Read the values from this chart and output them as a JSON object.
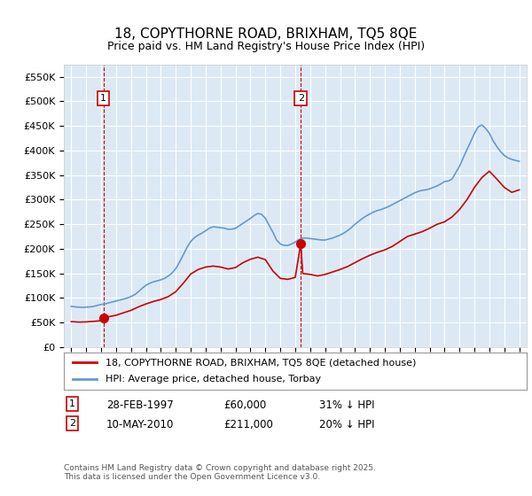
{
  "title": "18, COPYTHORNE ROAD, BRIXHAM, TQ5 8QE",
  "subtitle": "Price paid vs. HM Land Registry's House Price Index (HPI)",
  "ylabel": "",
  "ylim": [
    0,
    575000
  ],
  "yticks": [
    0,
    50000,
    100000,
    150000,
    200000,
    250000,
    300000,
    350000,
    400000,
    450000,
    500000,
    550000
  ],
  "ytick_labels": [
    "£0",
    "£50K",
    "£100K",
    "£150K",
    "£200K",
    "£250K",
    "£300K",
    "£350K",
    "£400K",
    "£450K",
    "£500K",
    "£550K"
  ],
  "bg_color": "#dce9f5",
  "plot_bg": "#dce9f5",
  "legend_label_red": "18, COPYTHORNE ROAD, BRIXHAM, TQ5 8QE (detached house)",
  "legend_label_blue": "HPI: Average price, detached house, Torbay",
  "sale1_date_label": "28-FEB-1997",
  "sale1_price_label": "£60,000",
  "sale1_pct_label": "31% ↓ HPI",
  "sale2_date_label": "10-MAY-2010",
  "sale2_price_label": "£211,000",
  "sale2_pct_label": "20% ↓ HPI",
  "footer": "Contains HM Land Registry data © Crown copyright and database right 2025.\nThis data is licensed under the Open Government Licence v3.0.",
  "red_color": "#cc0000",
  "blue_color": "#6699cc",
  "vline_color": "#cc0000",
  "hpi_data": {
    "years": [
      1995.0,
      1995.25,
      1995.5,
      1995.75,
      1996.0,
      1996.25,
      1996.5,
      1996.75,
      1997.0,
      1997.25,
      1997.5,
      1997.75,
      1998.0,
      1998.25,
      1998.5,
      1998.75,
      1999.0,
      1999.25,
      1999.5,
      1999.75,
      2000.0,
      2000.25,
      2000.5,
      2000.75,
      2001.0,
      2001.25,
      2001.5,
      2001.75,
      2002.0,
      2002.25,
      2002.5,
      2002.75,
      2003.0,
      2003.25,
      2003.5,
      2003.75,
      2004.0,
      2004.25,
      2004.5,
      2004.75,
      2005.0,
      2005.25,
      2005.5,
      2005.75,
      2006.0,
      2006.25,
      2006.5,
      2006.75,
      2007.0,
      2007.25,
      2007.5,
      2007.75,
      2008.0,
      2008.25,
      2008.5,
      2008.75,
      2009.0,
      2009.25,
      2009.5,
      2009.75,
      2010.0,
      2010.25,
      2010.5,
      2010.75,
      2011.0,
      2011.25,
      2011.5,
      2011.75,
      2012.0,
      2012.25,
      2012.5,
      2012.75,
      2013.0,
      2013.25,
      2013.5,
      2013.75,
      2014.0,
      2014.25,
      2014.5,
      2014.75,
      2015.0,
      2015.25,
      2015.5,
      2015.75,
      2016.0,
      2016.25,
      2016.5,
      2016.75,
      2017.0,
      2017.25,
      2017.5,
      2017.75,
      2018.0,
      2018.25,
      2018.5,
      2018.75,
      2019.0,
      2019.25,
      2019.5,
      2019.75,
      2020.0,
      2020.25,
      2020.5,
      2020.75,
      2021.0,
      2021.25,
      2021.5,
      2021.75,
      2022.0,
      2022.25,
      2022.5,
      2022.75,
      2023.0,
      2023.25,
      2023.5,
      2023.75,
      2024.0,
      2024.25,
      2024.5,
      2024.75,
      2025.0
    ],
    "values": [
      83000,
      82000,
      81500,
      81000,
      81500,
      82000,
      83000,
      85000,
      87000,
      88000,
      90000,
      92000,
      94000,
      96000,
      98000,
      100000,
      103000,
      107000,
      113000,
      120000,
      126000,
      130000,
      133000,
      135000,
      137000,
      140000,
      145000,
      151000,
      160000,
      173000,
      188000,
      203000,
      215000,
      223000,
      228000,
      232000,
      237000,
      242000,
      245000,
      244000,
      243000,
      242000,
      240000,
      240000,
      242000,
      247000,
      252000,
      257000,
      262000,
      268000,
      272000,
      270000,
      262000,
      248000,
      234000,
      218000,
      210000,
      207000,
      207000,
      210000,
      214000,
      219000,
      222000,
      222000,
      221000,
      220000,
      219000,
      218000,
      218000,
      220000,
      222000,
      225000,
      228000,
      232000,
      237000,
      243000,
      250000,
      256000,
      262000,
      267000,
      271000,
      275000,
      278000,
      280000,
      283000,
      286000,
      290000,
      294000,
      298000,
      302000,
      306000,
      310000,
      314000,
      317000,
      319000,
      320000,
      322000,
      325000,
      328000,
      332000,
      337000,
      338000,
      342000,
      355000,
      368000,
      385000,
      402000,
      418000,
      435000,
      448000,
      452000,
      445000,
      435000,
      420000,
      408000,
      398000,
      390000,
      385000,
      382000,
      380000,
      378000
    ]
  },
  "sale1_year": 1997.15,
  "sale1_price": 60000,
  "sale2_year": 2010.37,
  "sale2_price": 211000,
  "red_line_data": {
    "years": [
      1995.0,
      1995.5,
      1996.0,
      1996.5,
      1997.0,
      1997.15,
      1997.5,
      1998.0,
      1998.5,
      1999.0,
      1999.5,
      2000.0,
      2000.5,
      2001.0,
      2001.5,
      2002.0,
      2002.5,
      2003.0,
      2003.5,
      2004.0,
      2004.5,
      2005.0,
      2005.5,
      2006.0,
      2006.5,
      2007.0,
      2007.5,
      2008.0,
      2008.5,
      2009.0,
      2009.5,
      2010.0,
      2010.37,
      2010.5,
      2011.0,
      2011.5,
      2012.0,
      2012.5,
      2013.0,
      2013.5,
      2014.0,
      2014.5,
      2015.0,
      2015.5,
      2016.0,
      2016.5,
      2017.0,
      2017.5,
      2018.0,
      2018.5,
      2019.0,
      2019.5,
      2020.0,
      2020.5,
      2021.0,
      2021.5,
      2022.0,
      2022.5,
      2023.0,
      2023.5,
      2024.0,
      2024.5,
      2025.0
    ],
    "values": [
      52000,
      51000,
      51500,
      52500,
      54000,
      60000,
      62000,
      65000,
      70000,
      75000,
      82000,
      88000,
      93000,
      97000,
      103000,
      113000,
      130000,
      149000,
      158000,
      163000,
      165000,
      163000,
      159000,
      162000,
      172000,
      179000,
      183000,
      178000,
      155000,
      140000,
      138000,
      142000,
      211000,
      150000,
      148000,
      145000,
      148000,
      153000,
      158000,
      164000,
      172000,
      180000,
      187000,
      193000,
      198000,
      205000,
      215000,
      225000,
      230000,
      235000,
      242000,
      250000,
      255000,
      265000,
      280000,
      300000,
      325000,
      345000,
      358000,
      342000,
      325000,
      315000,
      320000
    ]
  }
}
